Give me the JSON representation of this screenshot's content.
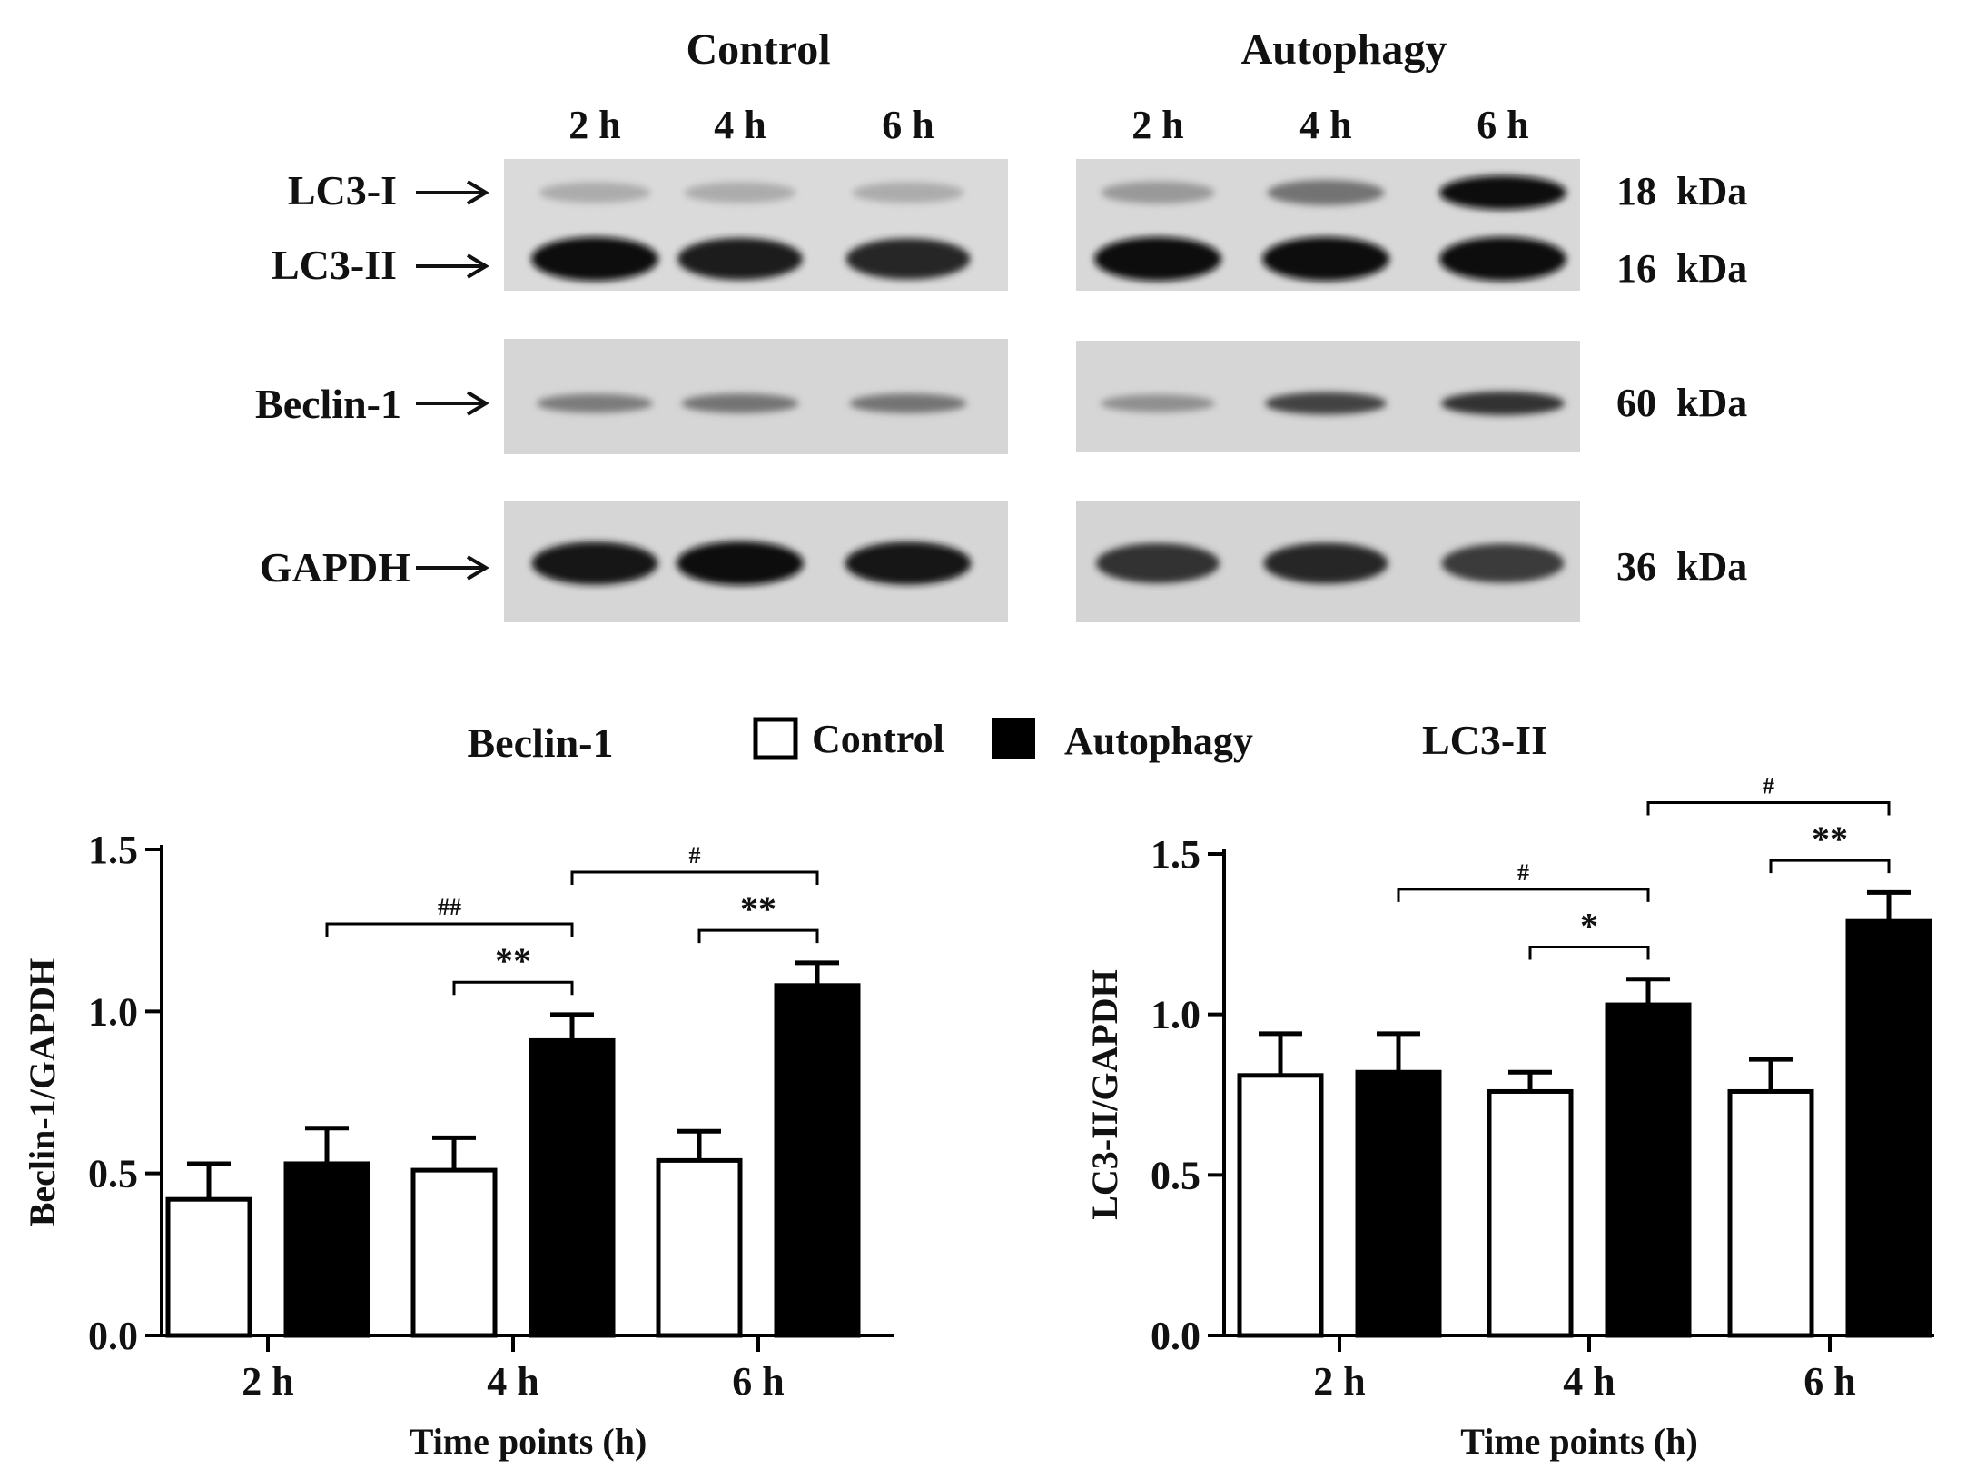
{
  "blot": {
    "groups": [
      {
        "title": "Control",
        "lanes": [
          "2 h",
          "4 h",
          "6 h"
        ]
      },
      {
        "title": "Autophagy",
        "lanes": [
          "2 h",
          "4 h",
          "6 h"
        ]
      }
    ],
    "proteins": [
      {
        "label": "LC3-I",
        "kda": "18  kDa",
        "intensity": {
          "Control": [
            0.15,
            0.15,
            0.15
          ],
          "Autophagy": [
            0.25,
            0.45,
            1.0
          ]
        }
      },
      {
        "label": "LC3-II",
        "kda": "16  kDa",
        "intensity": {
          "Control": [
            1.0,
            0.9,
            0.85
          ],
          "Autophagy": [
            1.0,
            1.0,
            1.0
          ]
        }
      },
      {
        "label": "Beclin-1",
        "kda": "60  kDa",
        "intensity": {
          "Control": [
            0.4,
            0.45,
            0.45
          ],
          "Autophagy": [
            0.3,
            0.7,
            0.8
          ]
        }
      },
      {
        "label": "GAPDH",
        "kda": "36  kDa",
        "intensity": {
          "Control": [
            0.95,
            1.0,
            0.95
          ],
          "Autophagy": [
            0.8,
            0.85,
            0.75
          ]
        }
      }
    ]
  },
  "legend": {
    "items": [
      {
        "name": "Control",
        "color": "#ffffff"
      },
      {
        "name": "Autophagy",
        "color": "#000000"
      }
    ]
  },
  "chart_data": [
    {
      "type": "bar",
      "title": "Beclin-1",
      "xlabel": "Time points (h)",
      "ylabel": "Beclin-1/GAPDH",
      "categories": [
        "2 h",
        "4 h",
        "6 h"
      ],
      "ylim": [
        0,
        1.5
      ],
      "yticks": [
        "0.0",
        "0.5",
        "1.0",
        "1.5"
      ],
      "series": [
        {
          "name": "Control",
          "color": "#ffffff",
          "values": [
            0.42,
            0.51,
            0.54
          ],
          "errors": [
            0.11,
            0.1,
            0.09
          ]
        },
        {
          "name": "Autophagy",
          "color": "#000000",
          "values": [
            0.53,
            0.91,
            1.08
          ],
          "errors": [
            0.11,
            0.08,
            0.07
          ]
        }
      ],
      "annotations": [
        {
          "text": "##",
          "from": [
            0,
            1
          ],
          "to": [
            1,
            1
          ]
        },
        {
          "text": "#",
          "from": [
            1,
            1
          ],
          "to": [
            2,
            1
          ]
        },
        {
          "text": "**",
          "from": [
            1,
            0
          ],
          "to": [
            1,
            1
          ]
        },
        {
          "text": "**",
          "from": [
            2,
            0
          ],
          "to": [
            2,
            1
          ]
        }
      ]
    },
    {
      "type": "bar",
      "title": "LC3-II",
      "xlabel": "Time points (h)",
      "ylabel": "LC3-II/GAPDH",
      "categories": [
        "2 h",
        "4 h",
        "6 h"
      ],
      "ylim": [
        0,
        1.5
      ],
      "yticks": [
        "0.0",
        "0.5",
        "1.0",
        "1.5"
      ],
      "series": [
        {
          "name": "Control",
          "color": "#ffffff",
          "values": [
            0.81,
            0.76,
            0.76
          ],
          "errors": [
            0.13,
            0.06,
            0.1
          ]
        },
        {
          "name": "Autophagy",
          "color": "#000000",
          "values": [
            0.82,
            1.03,
            1.29
          ],
          "errors": [
            0.12,
            0.08,
            0.09
          ]
        }
      ],
      "annotations": [
        {
          "text": "#",
          "from": [
            0,
            1
          ],
          "to": [
            1,
            1
          ]
        },
        {
          "text": "#",
          "from": [
            1,
            1
          ],
          "to": [
            2,
            1
          ]
        },
        {
          "text": "*",
          "from": [
            1,
            0
          ],
          "to": [
            1,
            1
          ]
        },
        {
          "text": "**",
          "from": [
            2,
            0
          ],
          "to": [
            2,
            1
          ]
        }
      ]
    }
  ]
}
